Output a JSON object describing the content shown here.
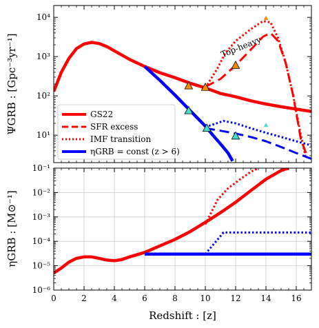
{
  "chart_data": [
    {
      "type": "line",
      "panel": "top",
      "ylabel": "ΨGRB : [Gpc⁻³yr⁻¹]",
      "yscale": "log",
      "xlim": [
        0,
        17
      ],
      "ylim": [
        2,
        20000
      ],
      "grid": false,
      "legend_position": "lower-left",
      "annotations": [
        {
          "text": "Top-heavy",
          "x": 11.7,
          "y": 1200
        }
      ],
      "series": [
        {
          "name": "GS22",
          "color": "#ff0000",
          "style": "solid",
          "points": [
            [
              0,
              130
            ],
            [
              0.5,
              400
            ],
            [
              1,
              900
            ],
            [
              1.5,
              1600
            ],
            [
              2,
              2100
            ],
            [
              2.5,
              2300
            ],
            [
              3,
              2150
            ],
            [
              3.5,
              1800
            ],
            [
              4,
              1400
            ],
            [
              5,
              850
            ],
            [
              6,
              560
            ],
            [
              7,
              390
            ],
            [
              8,
              290
            ],
            [
              9,
              210
            ],
            [
              10,
              160
            ],
            [
              11,
              115
            ],
            [
              12,
              95
            ],
            [
              13,
              75
            ],
            [
              14,
              62
            ],
            [
              15,
              53
            ],
            [
              16,
              46
            ],
            [
              17,
              40
            ]
          ]
        },
        {
          "name": "SFR excess",
          "color": "#ff0000",
          "style": "dashed",
          "points": [
            [
              10,
              170
            ],
            [
              11,
              270
            ],
            [
              12,
              600
            ],
            [
              13,
              1500
            ],
            [
              13.8,
              3200
            ],
            [
              14.3,
              4000
            ],
            [
              14.8,
              2500
            ],
            [
              15.3,
              700
            ],
            [
              15.8,
              100
            ],
            [
              16.3,
              8
            ],
            [
              16.7,
              3
            ]
          ]
        },
        {
          "name": "IMF transition",
          "color": "#ff0000",
          "style": "dotted",
          "points": [
            [
              10,
              160
            ],
            [
              10.8,
              500
            ],
            [
              11.3,
              1200
            ],
            [
              12,
              2500
            ],
            [
              13,
              5000
            ],
            [
              13.8,
              8000
            ],
            [
              14.3,
              7500
            ],
            [
              14.8,
              3000
            ],
            [
              15.3,
              700
            ],
            [
              15.8,
              100
            ],
            [
              16.3,
              10
            ],
            [
              16.6,
              3
            ]
          ]
        },
        {
          "name": "ηGRB = const (z > 6)",
          "color": "#0000ff",
          "style": "solid",
          "points": [
            [
              6,
              560
            ],
            [
              7,
              250
            ],
            [
              8,
              105
            ],
            [
              9,
              42
            ],
            [
              10,
              17
            ],
            [
              10.5,
              10
            ],
            [
              11,
              6
            ],
            [
              11.5,
              3.5
            ],
            [
              11.8,
              2.2
            ]
          ]
        },
        {
          "color": "#0000ff",
          "style": "dashed",
          "points": [
            [
              10,
              15
            ],
            [
              11,
              13
            ],
            [
              12,
              11
            ],
            [
              13,
              9
            ],
            [
              14,
              7
            ],
            [
              15,
              5
            ],
            [
              16,
              3.5
            ],
            [
              17,
              2.5
            ]
          ]
        },
        {
          "color": "#0000ff",
          "style": "dotted",
          "points": [
            [
              10,
              16
            ],
            [
              11.2,
              23
            ],
            [
              12,
              20
            ],
            [
              13,
              15
            ],
            [
              14,
              11.5
            ],
            [
              15,
              9
            ],
            [
              16,
              7
            ],
            [
              17,
              5.5
            ]
          ]
        }
      ],
      "markers": [
        {
          "x": 8.9,
          "y": 180,
          "color": "#ff8c00",
          "size": "large"
        },
        {
          "x": 10.0,
          "y": 165,
          "color": "#ff8c00",
          "size": "large"
        },
        {
          "x": 12.0,
          "y": 600,
          "color": "#ff8c00",
          "size": "large"
        },
        {
          "x": 14.0,
          "y": 9500,
          "color": "#ff8c00",
          "size": "small"
        },
        {
          "x": 8.9,
          "y": 42,
          "color": "#40e0d0",
          "size": "large"
        },
        {
          "x": 10.1,
          "y": 15,
          "color": "#40e0d0",
          "size": "large"
        },
        {
          "x": 12.0,
          "y": 9.5,
          "color": "#40e0d0",
          "size": "large"
        },
        {
          "x": 14.0,
          "y": 18,
          "color": "#40e0d0",
          "size": "small"
        }
      ],
      "y_ticks": [
        {
          "value": 10,
          "label": "10¹"
        },
        {
          "value": 100,
          "label": "10²"
        },
        {
          "value": 1000,
          "label": "10³"
        },
        {
          "value": 10000,
          "label": "10⁴"
        }
      ]
    },
    {
      "type": "line",
      "panel": "bottom",
      "xlabel": "Redshift : [z]",
      "ylabel": "ηGRB : [M⊙⁻¹]",
      "yscale": "log",
      "xlim": [
        0,
        17
      ],
      "ylim": [
        1e-06,
        0.1
      ],
      "grid": true,
      "series": [
        {
          "color": "#ff0000",
          "style": "solid",
          "points": [
            [
              0,
              5e-06
            ],
            [
              0.5,
              8e-06
            ],
            [
              1,
              1.4e-05
            ],
            [
              1.5,
              2e-05
            ],
            [
              2,
              2.3e-05
            ],
            [
              2.5,
              2.3e-05
            ],
            [
              3,
              2e-05
            ],
            [
              3.5,
              1.7e-05
            ],
            [
              4,
              1.6e-05
            ],
            [
              4.5,
              1.8e-05
            ],
            [
              5,
              2.3e-05
            ],
            [
              6,
              3.5e-05
            ],
            [
              7,
              6.5e-05
            ],
            [
              8,
              0.00012
            ],
            [
              9,
              0.00025
            ],
            [
              10,
              0.0006
            ],
            [
              11,
              0.0015
            ],
            [
              12,
              0.004
            ],
            [
              13,
              0.012
            ],
            [
              14,
              0.035
            ],
            [
              15,
              0.08
            ],
            [
              15.5,
              0.1
            ]
          ]
        },
        {
          "color": "#ff0000",
          "style": "dotted",
          "points": [
            [
              10,
              0.0005
            ],
            [
              10.8,
              0.005
            ],
            [
              11.5,
              0.015
            ],
            [
              12.3,
              0.035
            ],
            [
              13,
              0.07
            ],
            [
              13.5,
              0.1
            ]
          ]
        },
        {
          "color": "#0000ff",
          "style": "solid",
          "points": [
            [
              6,
              3e-05
            ],
            [
              17,
              3e-05
            ]
          ]
        },
        {
          "color": "#0000ff",
          "style": "dotted",
          "points": [
            [
              10,
              3e-05
            ],
            [
              11.2,
              0.00023
            ],
            [
              17,
              0.00023
            ]
          ]
        }
      ],
      "x_ticks": [
        0,
        2,
        4,
        6,
        8,
        10,
        12,
        14,
        16
      ],
      "y_ticks": [
        {
          "value": 1e-06,
          "label": "10⁻⁶"
        },
        {
          "value": 1e-05,
          "label": "10⁻⁵"
        },
        {
          "value": 0.0001,
          "label": "10⁻⁴"
        },
        {
          "value": 0.001,
          "label": "10⁻³"
        },
        {
          "value": 0.01,
          "label": "10⁻²"
        },
        {
          "value": 0.1,
          "label": "10⁻¹"
        }
      ]
    }
  ]
}
